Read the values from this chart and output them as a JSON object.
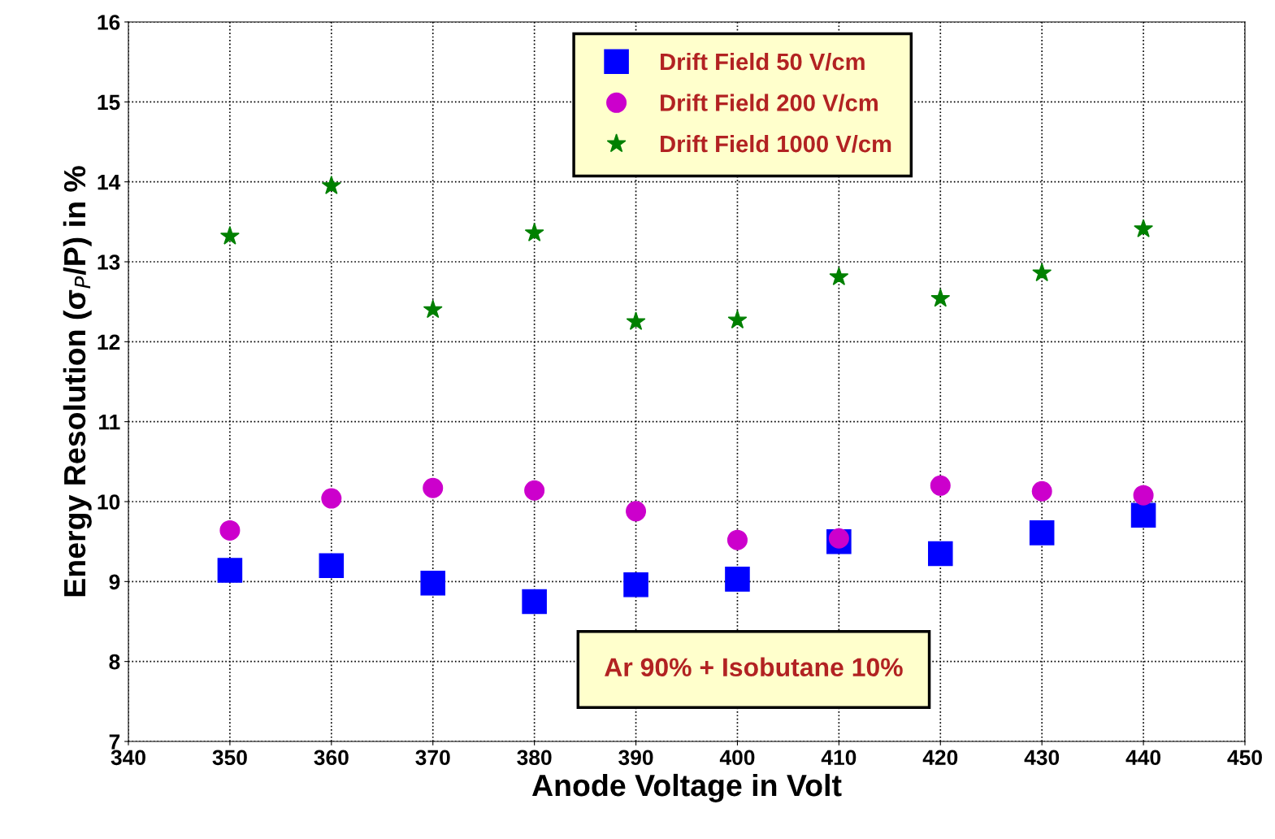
{
  "chart_data": {
    "type": "scatter",
    "xlabel": "Anode Voltage in Volt",
    "ylabel": "Energy Resolution (σ$_{P}$/P) in %",
    "x": [
      350,
      360,
      370,
      380,
      390,
      400,
      410,
      420,
      430,
      440
    ],
    "series": [
      {
        "name": "Drift Field 50 V/cm",
        "color": "#0000ff",
        "marker": "square",
        "values": [
          9.14,
          9.2,
          8.98,
          8.75,
          8.96,
          9.03,
          9.5,
          9.35,
          9.61,
          9.83
        ]
      },
      {
        "name": "Drift Field 200 V/cm",
        "color": "#cc00cc",
        "marker": "circle",
        "values": [
          9.64,
          10.04,
          10.17,
          10.14,
          9.88,
          9.52,
          9.54,
          10.2,
          10.13,
          10.08
        ]
      },
      {
        "name": "Drift Field 1000 V/cm",
        "color": "#008000",
        "marker": "star",
        "values": [
          13.32,
          13.95,
          12.4,
          13.36,
          12.25,
          12.27,
          12.81,
          12.54,
          12.86,
          13.41
        ]
      }
    ],
    "xlim": [
      340,
      450
    ],
    "xticks": [
      340,
      350,
      360,
      370,
      380,
      390,
      400,
      410,
      420,
      430,
      440,
      450
    ],
    "ylim": [
      7,
      16
    ],
    "yticks": [
      7,
      8,
      9,
      10,
      11,
      12,
      13,
      14,
      15,
      16
    ],
    "grid": true,
    "legend": "top",
    "annotations": [
      "Ar 90% + Isobutane 10%"
    ]
  }
}
